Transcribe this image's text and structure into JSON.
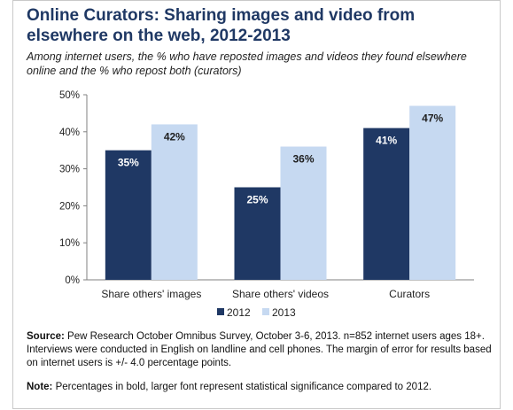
{
  "title": "Online Curators: Sharing images and video from elsewhere on the web, 2012-2013",
  "subtitle": "Among internet users, the % who have reposted images and videos they found elsewhere online and the % who repost both (curators)",
  "source_label": "Source:",
  "source_text": "Pew Research October Omnibus Survey, October 3-6, 2013. n=852 internet users ages 18+. Interviews were conducted in English on landline and cell phones.  The margin of error for results based on internet users is +/- 4.0 percentage points.",
  "note_label": "Note:",
  "note_text": "Percentages in bold, larger font represent statistical significance compared to 2012.",
  "colors": {
    "title": "#1f3864",
    "series_2012": "#1f3864",
    "series_2013": "#c6d9f1",
    "label_2012": "#ffffff",
    "label_2013": "#1f1f1f",
    "axis": "#808080"
  },
  "chart_data": {
    "type": "bar",
    "categories": [
      "Share others' images",
      "Share others' videos",
      "Curators"
    ],
    "series": [
      {
        "name": "2012",
        "values": [
          35,
          25,
          41
        ],
        "labels": [
          "35%",
          "25%",
          "41%"
        ]
      },
      {
        "name": "2013",
        "values": [
          42,
          36,
          47
        ],
        "labels": [
          "42%",
          "36%",
          "47%"
        ]
      }
    ],
    "ylim": [
      0,
      50
    ],
    "yticks": [
      0,
      10,
      20,
      30,
      40,
      50
    ],
    "ytick_labels": [
      "0%",
      "10%",
      "20%",
      "30%",
      "40%",
      "50%"
    ],
    "grid": false,
    "legend": "bottom"
  }
}
